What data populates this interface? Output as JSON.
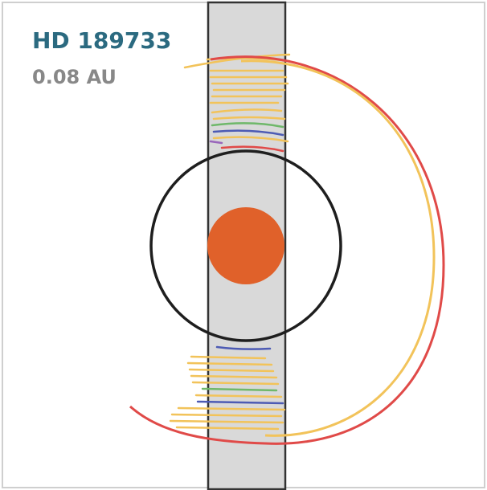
{
  "title": "HD 189733",
  "subtitle": "0.08 AU",
  "colors": {
    "title": "#2b6a80",
    "subtitle": "#888888",
    "band_fill": "#d9d9d9",
    "band_stroke": "#333333",
    "frame": "#cfcfcf",
    "star": "#e0612a",
    "orbit": "#1e1e1e",
    "arc_yellow": "#f2c35a",
    "arc_red": "#e04a48",
    "arc_green": "#6fb86a",
    "arc_blue": "#4d5bb4",
    "arc_purple": "#9966bb"
  }
}
